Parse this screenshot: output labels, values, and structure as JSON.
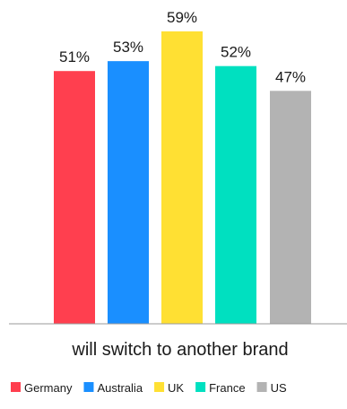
{
  "chart_data": {
    "type": "bar",
    "categories": [
      "Germany",
      "Australia",
      "UK",
      "France",
      "US"
    ],
    "values": [
      51,
      53,
      59,
      52,
      47
    ],
    "value_labels": [
      "51%",
      "53%",
      "59%",
      "52%",
      "47%"
    ],
    "xlabel": "will switch to another brand",
    "ylabel": "",
    "ylim": [
      0,
      60
    ],
    "grid": false,
    "legend_position": "bottom",
    "colors": {
      "Germany": "#ff3f4f",
      "Australia": "#1a8fff",
      "UK": "#ffe033",
      "France": "#00e0c0",
      "US": "#b3b3b3"
    }
  }
}
